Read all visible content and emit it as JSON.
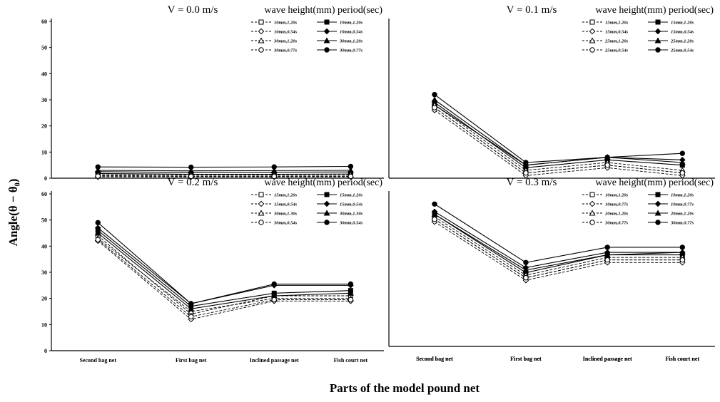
{
  "figure": {
    "ylabel": "Angle(θ − θ₀)",
    "xlabel": "Parts of the model pound net",
    "legend_header": "wave height(mm) period(sec)"
  },
  "chart_data": [
    {
      "type": "line",
      "title": "V = 0.0 m/s",
      "categories": [
        "",
        "",
        "",
        ""
      ],
      "ylim": [
        0,
        60
      ],
      "yticks": [
        0,
        10,
        20,
        30,
        40,
        50,
        60
      ],
      "legend_position": "top-right",
      "series": [
        {
          "name": "10mm,1.20s",
          "marker": "square",
          "fill": "open",
          "dash": true,
          "values": [
            1.0,
            0.8,
            0.8,
            0.8
          ]
        },
        {
          "name": "10mm,1.20s",
          "marker": "square",
          "fill": "filled",
          "dash": false,
          "values": [
            1.8,
            1.5,
            1.5,
            1.6
          ]
        },
        {
          "name": "10mm,0.54s",
          "marker": "diamond",
          "fill": "open",
          "dash": true,
          "values": [
            0.5,
            0.5,
            0.5,
            0.5
          ]
        },
        {
          "name": "10mm,0.54s",
          "marker": "diamond",
          "fill": "filled",
          "dash": false,
          "values": [
            2.5,
            2.2,
            2.3,
            2.4
          ]
        },
        {
          "name": "30mm,1.20s",
          "marker": "triangle",
          "fill": "open",
          "dash": true,
          "values": [
            1.4,
            1.2,
            1.2,
            1.3
          ]
        },
        {
          "name": "30mm,1.20s",
          "marker": "triangle",
          "fill": "filled",
          "dash": false,
          "values": [
            3.0,
            2.8,
            2.9,
            3.0
          ]
        },
        {
          "name": "30mm,0.77s",
          "marker": "circle",
          "fill": "open",
          "dash": true,
          "values": [
            0.8,
            0.7,
            0.7,
            0.7
          ]
        },
        {
          "name": "30mm,0.77s",
          "marker": "circle",
          "fill": "filled",
          "dash": false,
          "values": [
            4.3,
            4.2,
            4.3,
            4.5
          ]
        }
      ]
    },
    {
      "type": "line",
      "title": "V = 0.1 m/s",
      "categories": [
        "Second bag net",
        "First bag net",
        "Inclined passage net",
        "Fish court net"
      ],
      "ylim": [
        0,
        60
      ],
      "yticks": [],
      "legend_position": "top-right",
      "series": [
        {
          "name": "15mm,1.20s",
          "marker": "square",
          "fill": "open",
          "dash": true,
          "values": [
            27,
            2,
            5,
            2
          ]
        },
        {
          "name": "15mm,1.20s",
          "marker": "square",
          "fill": "filled",
          "dash": false,
          "values": [
            29,
            4,
            7,
            5
          ]
        },
        {
          "name": "15mm,0.54s",
          "marker": "diamond",
          "fill": "open",
          "dash": true,
          "values": [
            26,
            1,
            4,
            1
          ]
        },
        {
          "name": "15mm,0.54s",
          "marker": "diamond",
          "fill": "filled",
          "dash": false,
          "values": [
            28,
            5,
            8,
            7
          ]
        },
        {
          "name": "25mm,1.20s",
          "marker": "triangle",
          "fill": "open",
          "dash": true,
          "values": [
            28,
            3,
            6,
            3
          ]
        },
        {
          "name": "25mm,1.20s",
          "marker": "triangle",
          "fill": "filled",
          "dash": false,
          "values": [
            30,
            5,
            8,
            6
          ]
        },
        {
          "name": "25mm,0.54s",
          "marker": "circle",
          "fill": "open",
          "dash": true,
          "values": [
            27,
            2,
            5,
            2
          ]
        },
        {
          "name": "25mm,0.54s",
          "marker": "circle",
          "fill": "filled",
          "dash": false,
          "values": [
            32,
            6,
            8,
            9.5
          ]
        }
      ]
    },
    {
      "type": "line",
      "title": "V = 0.2 m/s",
      "categories": [
        "Second bag net",
        "First bag net",
        "Inclined passage net",
        "Fish court net"
      ],
      "ylim": [
        0,
        60
      ],
      "yticks": [
        0,
        10,
        20,
        30,
        40,
        50,
        60
      ],
      "legend_position": "top-right",
      "series": [
        {
          "name": "15mm,1.20s",
          "marker": "square",
          "fill": "open",
          "dash": true,
          "values": [
            44,
            14,
            21,
            21
          ]
        },
        {
          "name": "15mm,1.20s",
          "marker": "square",
          "fill": "filled",
          "dash": false,
          "values": [
            46,
            17,
            22,
            23
          ]
        },
        {
          "name": "15mm,0.54s",
          "marker": "diamond",
          "fill": "open",
          "dash": true,
          "values": [
            42,
            12,
            19,
            19
          ]
        },
        {
          "name": "15mm,0.54s",
          "marker": "diamond",
          "fill": "filled",
          "dash": false,
          "values": [
            47,
            18,
            25,
            25
          ]
        },
        {
          "name": "30mm,1.30s",
          "marker": "triangle",
          "fill": "open",
          "dash": true,
          "values": [
            43,
            15,
            20,
            20
          ]
        },
        {
          "name": "30mm,1.30s",
          "marker": "triangle",
          "fill": "filled",
          "dash": false,
          "values": [
            45,
            16,
            21,
            22
          ]
        },
        {
          "name": "30mm,0.54s",
          "marker": "circle",
          "fill": "open",
          "dash": true,
          "values": [
            42.5,
            13,
            19.5,
            19.5
          ]
        },
        {
          "name": "30mm,0.54s",
          "marker": "circle",
          "fill": "filled",
          "dash": false,
          "values": [
            49,
            18,
            25.5,
            25.5
          ]
        }
      ]
    },
    {
      "type": "line",
      "title": "V = 0.3 m/s",
      "categories": [
        "Second bag net",
        "First bag net",
        "Inclined passage net",
        "Fish court net"
      ],
      "ylim": [
        0,
        60
      ],
      "yticks": [],
      "legend_position": "top-right",
      "series": [
        {
          "name": "10mm,1.20s",
          "marker": "square",
          "fill": "open",
          "dash": true,
          "values": [
            50,
            27,
            34,
            34
          ]
        },
        {
          "name": "10mm,1.20s",
          "marker": "square",
          "fill": "filled",
          "dash": false,
          "values": [
            52,
            29,
            36,
            36
          ]
        },
        {
          "name": "10mm,0.77s",
          "marker": "diamond",
          "fill": "open",
          "dash": true,
          "values": [
            49,
            26,
            33,
            33
          ]
        },
        {
          "name": "10mm,0.77s",
          "marker": "diamond",
          "fill": "filled",
          "dash": false,
          "values": [
            53,
            31,
            37,
            37
          ]
        },
        {
          "name": "20mm,1.20s",
          "marker": "triangle",
          "fill": "open",
          "dash": true,
          "values": [
            51,
            28,
            35,
            35
          ]
        },
        {
          "name": "20mm,1.20s",
          "marker": "triangle",
          "fill": "filled",
          "dash": false,
          "values": [
            52,
            30,
            36,
            37
          ]
        },
        {
          "name": "30mm,0.77s",
          "marker": "circle",
          "fill": "open",
          "dash": true,
          "values": [
            50,
            27,
            34,
            34
          ]
        },
        {
          "name": "30mm,0.77s",
          "marker": "circle",
          "fill": "filled",
          "dash": false,
          "values": [
            56,
            33,
            39,
            39
          ]
        }
      ]
    }
  ]
}
